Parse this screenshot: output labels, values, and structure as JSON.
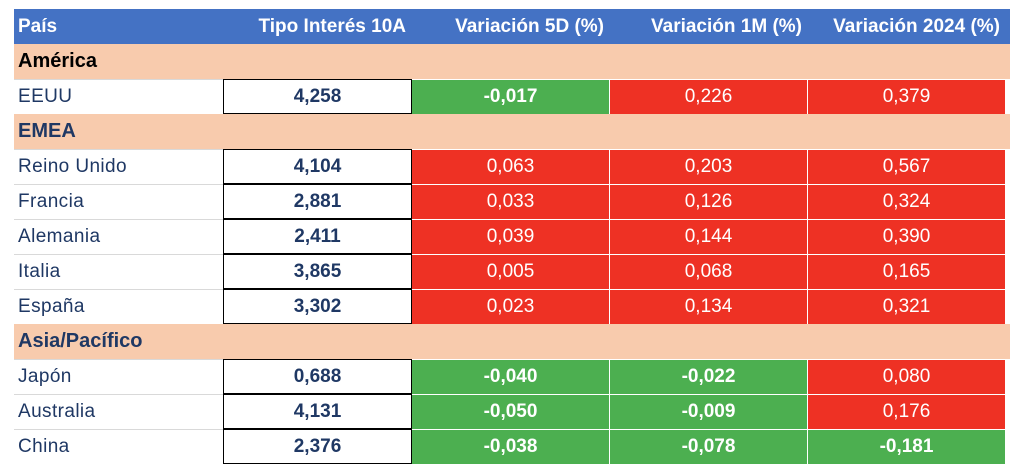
{
  "columns": [
    "País",
    "Tipo Interés 10A",
    "Variación 5D (%)",
    "Variación 1M (%)",
    "Variación 2024 (%)"
  ],
  "colors": {
    "header_bg": "#4472c4",
    "group_bg": "#f8cbad",
    "positive_up": "#ee3124",
    "negative_down": "#4caf50"
  },
  "groups": [
    {
      "name": "América",
      "rows": [
        {
          "country": "EEUU",
          "rate": "4,258",
          "d5": "-0,017",
          "m1": "0,226",
          "y2024": "0,379"
        }
      ]
    },
    {
      "name": "EMEA",
      "rows": [
        {
          "country": "Reino Unido",
          "rate": "4,104",
          "d5": "0,063",
          "m1": "0,203",
          "y2024": "0,567"
        },
        {
          "country": "Francia",
          "rate": "2,881",
          "d5": "0,033",
          "m1": "0,126",
          "y2024": "0,324"
        },
        {
          "country": "Alemania",
          "rate": "2,411",
          "d5": "0,039",
          "m1": "0,144",
          "y2024": "0,390"
        },
        {
          "country": "Italia",
          "rate": "3,865",
          "d5": "0,005",
          "m1": "0,068",
          "y2024": "0,165"
        },
        {
          "country": "España",
          "rate": "3,302",
          "d5": "0,023",
          "m1": "0,134",
          "y2024": "0,321"
        }
      ]
    },
    {
      "name": "Asia/Pacífico",
      "rows": [
        {
          "country": "Japón",
          "rate": "0,688",
          "d5": "-0,040",
          "m1": "-0,022",
          "y2024": "0,080"
        },
        {
          "country": "Australia",
          "rate": "4,131",
          "d5": "-0,050",
          "m1": "-0,009",
          "y2024": "0,176"
        },
        {
          "country": "China",
          "rate": "2,376",
          "d5": "-0,038",
          "m1": "-0,078",
          "y2024": "-0,181"
        }
      ]
    }
  ]
}
